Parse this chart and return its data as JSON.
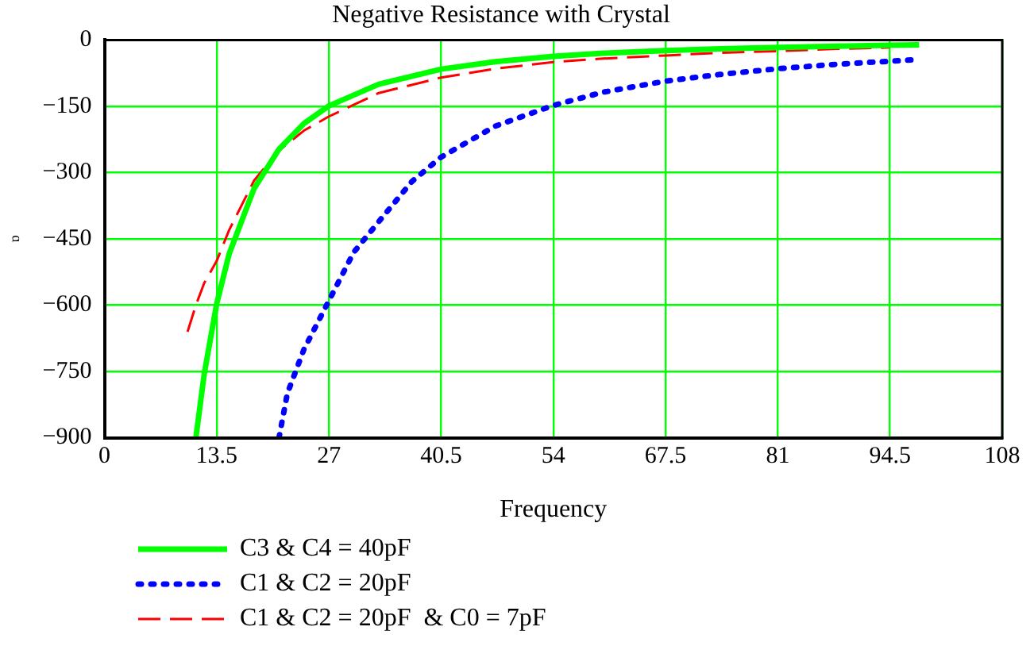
{
  "chart_data": {
    "type": "line",
    "title": "Negative Resistance with Crystal",
    "xlabel": "Frequency",
    "ylabel": "ɒ",
    "xlim": [
      0,
      108
    ],
    "xticks": [
      0,
      13.5,
      27,
      40.5,
      54,
      67.5,
      81,
      94.5,
      108
    ],
    "ylim": [
      -900,
      0
    ],
    "yticks": [
      -900,
      -750,
      -600,
      -450,
      -300,
      -150,
      0
    ],
    "grid": true,
    "legend": "bottom left",
    "marker": "none",
    "series": [
      {
        "name": "C3 & C4 = 40pF",
        "color": "#00ff00",
        "line_style": "solid",
        "x": [
          11,
          12,
          13.5,
          15,
          18,
          21,
          24,
          27,
          33,
          40.5,
          47,
          54,
          60,
          67.5,
          74,
          81,
          88,
          94.5,
          98
        ],
        "values": [
          -900,
          -756,
          -597,
          -484,
          -336,
          -247,
          -189,
          -149,
          -100,
          -66,
          -49,
          -37,
          -30,
          -24,
          -20,
          -17,
          -14,
          -12,
          -11
        ]
      },
      {
        "name": "C1 & C2 = 20pF",
        "color": "#0000ff",
        "line_style": "dotted",
        "x": [
          21,
          22,
          24,
          27,
          30,
          33.7,
          37,
          40.5,
          47,
          54,
          60,
          67.5,
          74,
          81,
          88,
          94.5,
          98
        ],
        "values": [
          -900,
          -800,
          -700,
          -590,
          -480,
          -395,
          -320,
          -265,
          -195,
          -148,
          -118,
          -93,
          -78,
          -65,
          -55,
          -48,
          -44
        ]
      },
      {
        "name": "C1 & C2 = 20pF  & C0 = 7pF",
        "color": "#ff0000",
        "line_style": "dashed",
        "x": [
          10,
          11,
          12,
          13.5,
          15,
          18,
          21,
          24,
          27,
          33,
          40.5,
          47,
          54,
          60,
          67.5,
          74,
          81,
          88,
          94.5
        ],
        "values": [
          -660,
          -600,
          -550,
          -500,
          -430,
          -318,
          -250,
          -205,
          -173,
          -120,
          -85,
          -65,
          -50,
          -42,
          -35,
          -29,
          -25,
          -20,
          -17
        ]
      }
    ]
  }
}
